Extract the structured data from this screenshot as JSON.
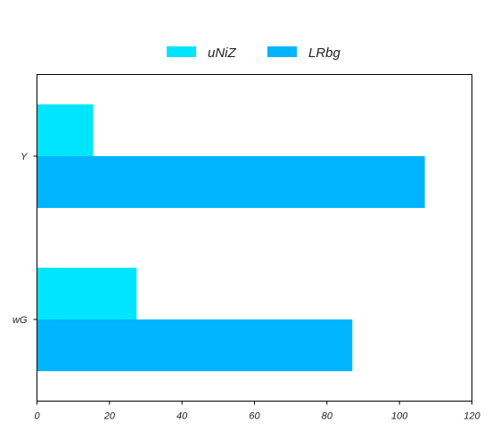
{
  "chart_data": {
    "type": "bar",
    "orientation": "horizontal",
    "categories": [
      "Y",
      "wG"
    ],
    "series": [
      {
        "name": "uNiZ",
        "values": [
          15.5,
          27.5
        ],
        "color": "#00e5ff"
      },
      {
        "name": "LRbg",
        "values": [
          107,
          87
        ],
        "color": "#00b4ff"
      }
    ],
    "xlim": [
      0,
      120
    ],
    "xticks": [
      0,
      20,
      40,
      60,
      80,
      100,
      120
    ],
    "grid": false,
    "legend": "top-center",
    "title": "",
    "xlabel": "",
    "ylabel": ""
  }
}
